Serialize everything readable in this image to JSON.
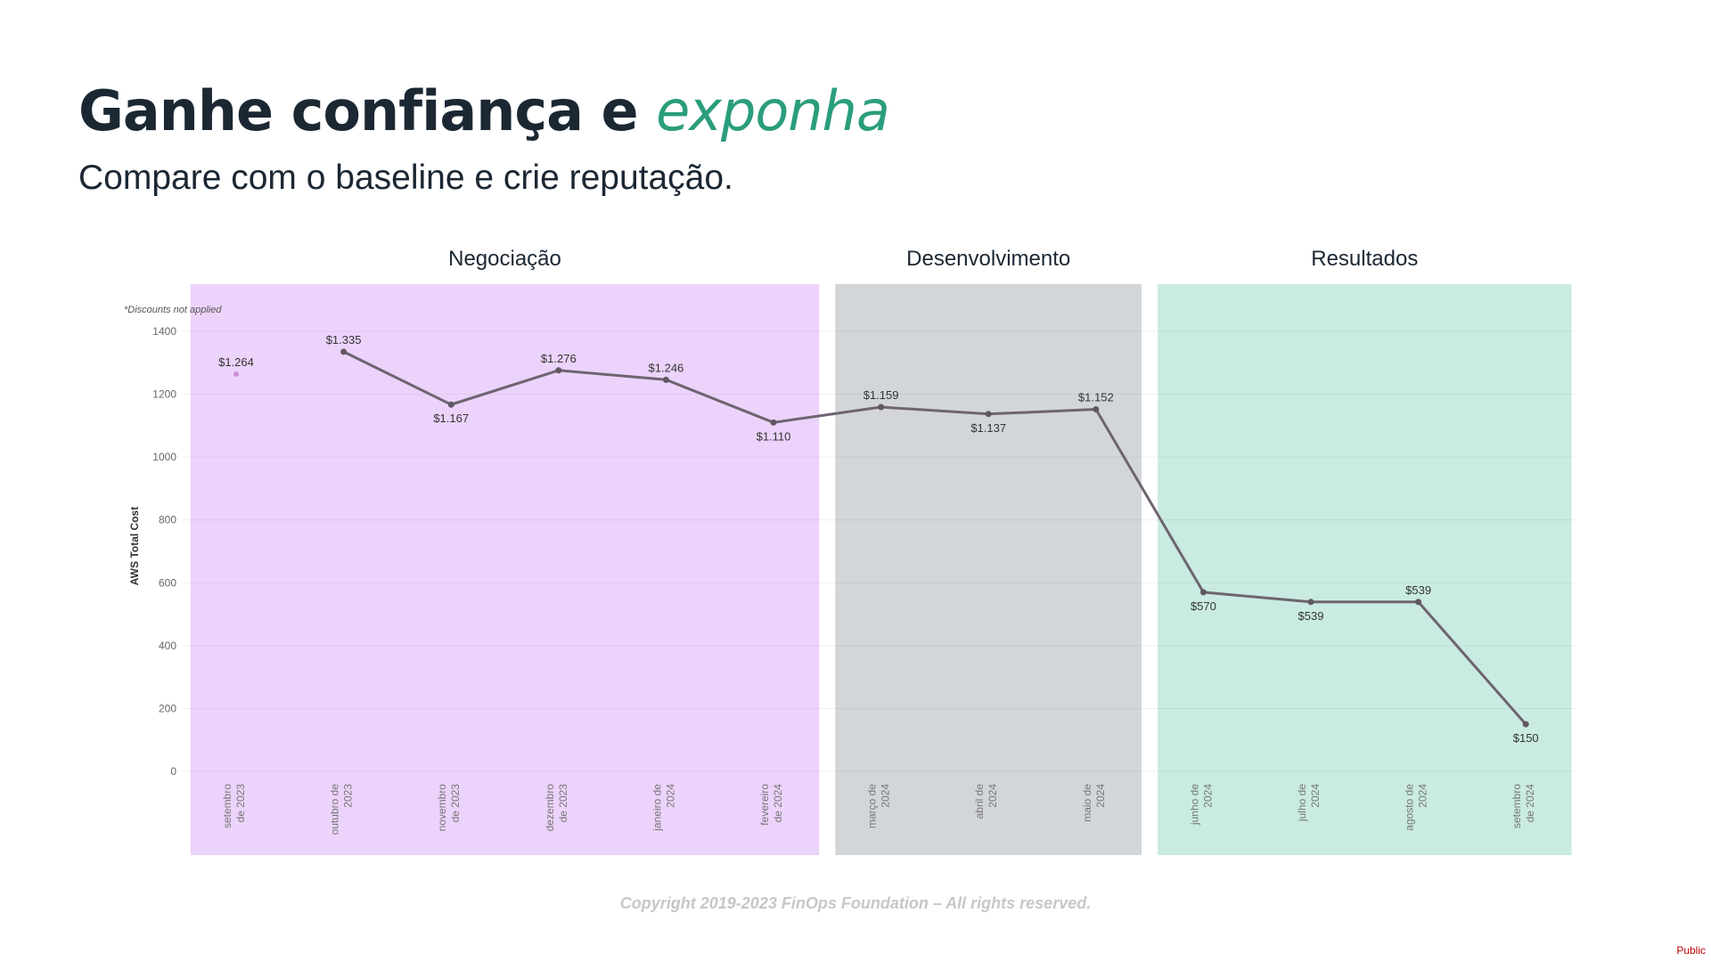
{
  "slide": {
    "title_main": "Ganhe confiança e ",
    "title_accent": "exponha",
    "subtitle": "Compare com o baseline e crie reputação.",
    "copyright": "Copyright 2019-2023 FinOps Foundation – All rights reserved.",
    "classification": "Public"
  },
  "chart_data": {
    "type": "line",
    "ylabel": "AWS Total Cost",
    "note": "*Discounts not applied",
    "ylim": [
      0,
      1400
    ],
    "yticks": [
      0,
      200,
      400,
      600,
      800,
      1000,
      1200,
      1400
    ],
    "grid": true,
    "categories": [
      [
        "setembro",
        "de 2023"
      ],
      [
        "outubro de",
        "2023"
      ],
      [
        "novembro",
        "de 2023"
      ],
      [
        "dezembro",
        "de 2023"
      ],
      [
        "janeiro de",
        "2024"
      ],
      [
        "fevereiro",
        "de 2024"
      ],
      [
        "março de",
        "2024"
      ],
      [
        "abril de",
        "2024"
      ],
      [
        "maio de",
        "2024"
      ],
      [
        "junho de",
        "2024"
      ],
      [
        "julho de",
        "2024"
      ],
      [
        "agosto de",
        "2024"
      ],
      [
        "setembro",
        "de 2024"
      ]
    ],
    "values": [
      1264,
      1335,
      1167,
      1276,
      1246,
      1110,
      1159,
      1137,
      1152,
      570,
      539,
      539,
      150
    ],
    "data_labels": [
      "$1.264",
      "$1.335",
      "$1.167",
      "$1.276",
      "$1.246",
      "$1.110",
      "$1.159",
      "$1.137",
      "$1.152",
      "$570",
      "$539",
      "$539",
      "$150"
    ],
    "phases": [
      {
        "label": "Negociação",
        "color": "#ecd3fb",
        "start_index": 0,
        "end_index": 5
      },
      {
        "label": "Desenvolvimento",
        "color": "#d3d6d9",
        "start_index": 6,
        "end_index": 8
      },
      {
        "label": "Resultados",
        "color": "#c9ebe1",
        "start_index": 9,
        "end_index": 12
      }
    ],
    "line_color": "#6e6470"
  }
}
